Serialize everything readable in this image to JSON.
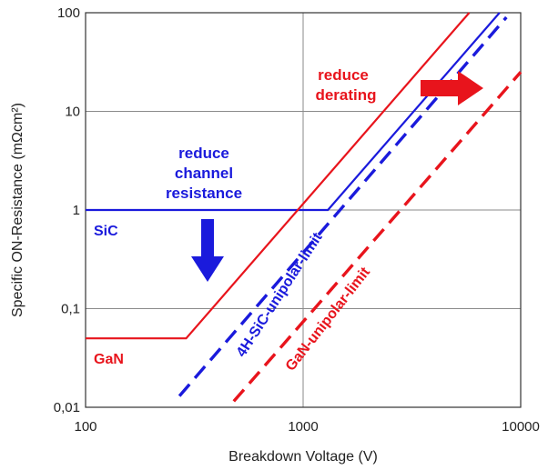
{
  "chart_data": {
    "type": "line",
    "x_scale": "log",
    "y_scale": "log",
    "xlim": [
      100,
      10000
    ],
    "ylim": [
      0.01,
      100
    ],
    "xlabel": "Breakdown Voltage (V)",
    "ylabel": "Specific ON-Resistance (mΩcm²)",
    "x_ticks": [
      "100",
      "1000",
      "10000"
    ],
    "y_ticks": [
      "0,01",
      "0,1",
      "1",
      "10",
      "100"
    ],
    "grid": true,
    "series": [
      {
        "name": "SiC",
        "color": "#1a1adc",
        "style": "solid",
        "points": [
          [
            100,
            1
          ],
          [
            1300,
            1
          ],
          [
            8000,
            100
          ]
        ]
      },
      {
        "name": "GaN",
        "color": "#e8141c",
        "style": "solid",
        "points": [
          [
            100,
            0.05
          ],
          [
            290,
            0.05
          ],
          [
            5800,
            100
          ]
        ]
      },
      {
        "name": "4H-SiC-unipolar-limit",
        "color": "#1a1adc",
        "style": "dashed",
        "points": [
          [
            270,
            0.013
          ],
          [
            8600,
            90
          ]
        ]
      },
      {
        "name": "GaN-unipolar-limit",
        "color": "#e8141c",
        "style": "dashed",
        "points": [
          [
            480,
            0.0115
          ],
          [
            10000,
            25
          ]
        ]
      }
    ],
    "annotations": [
      {
        "id": "reduce-channel",
        "lines": [
          "reduce",
          "channel",
          "resistance"
        ],
        "color": "#1a1adc"
      },
      {
        "id": "reduce-derating",
        "lines": [
          "reduce",
          "derating"
        ],
        "color": "#e8141c"
      }
    ],
    "arrows": [
      {
        "id": "down-arrow",
        "direction": "down",
        "color": "#1a1adc"
      },
      {
        "id": "right-arrow",
        "direction": "right",
        "color": "#e8141c"
      }
    ]
  }
}
